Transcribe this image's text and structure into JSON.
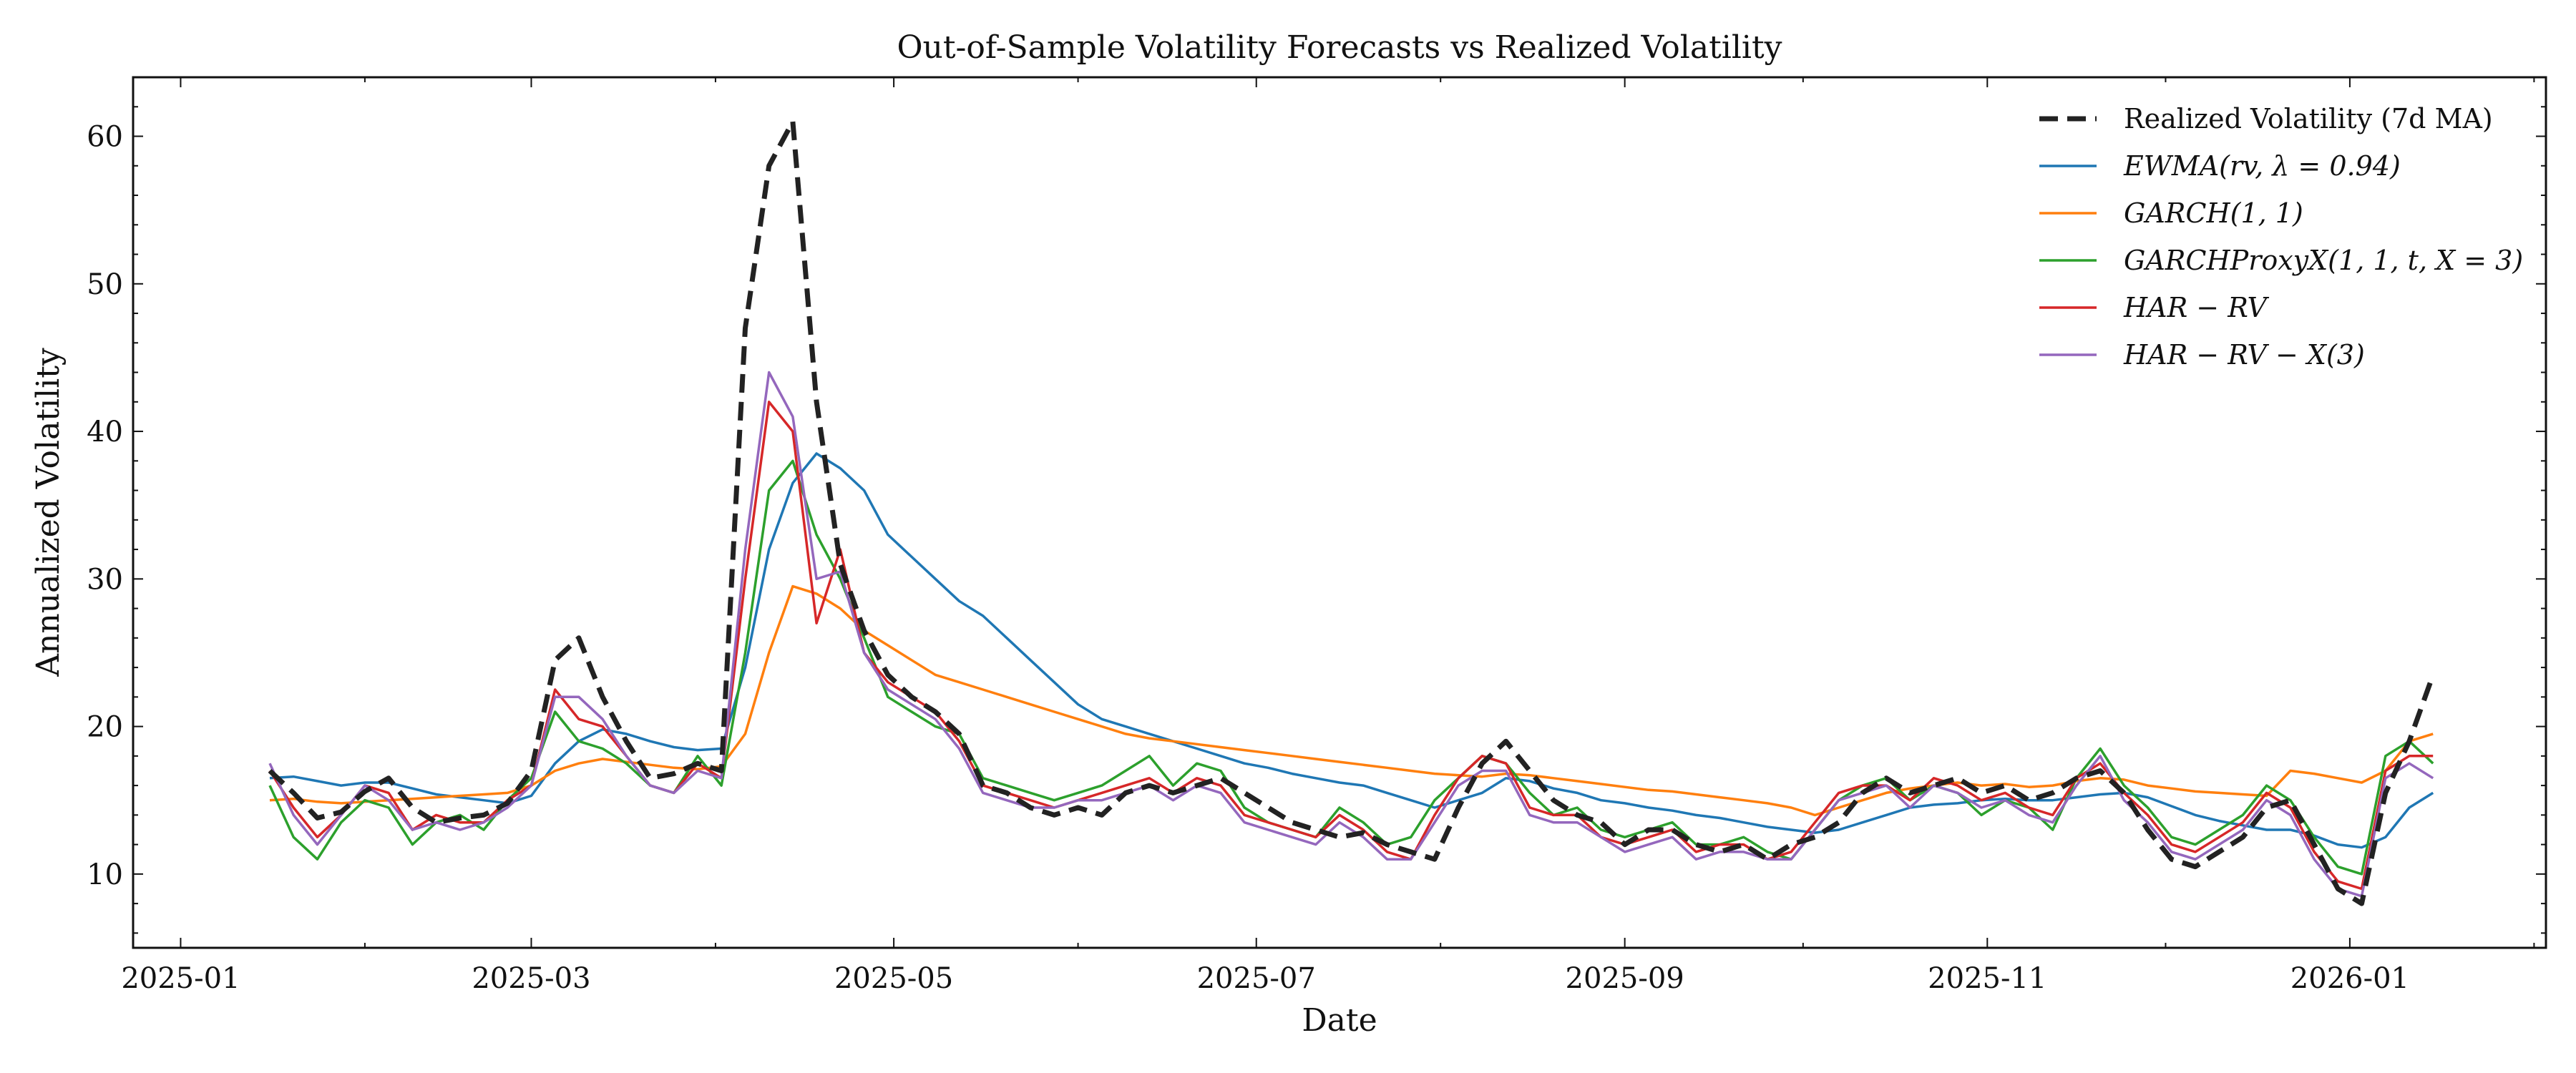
{
  "chart_data": {
    "type": "line",
    "title": "Out-of-Sample Volatility Forecasts vs Realized Volatility",
    "xlabel": "Date",
    "ylabel": "Annualized Volatility",
    "xlim": [
      "2024-12-24",
      "2026-02-03"
    ],
    "ylim": [
      5,
      64
    ],
    "x_ticks": [
      "2025-01",
      "2025-03",
      "2025-05",
      "2025-07",
      "2025-09",
      "2025-11",
      "2026-01"
    ],
    "y_ticks": [
      10,
      20,
      30,
      40,
      50,
      60
    ],
    "grid": false,
    "legend_position": "upper-right",
    "dates": [
      "2025-01-16",
      "2025-01-20",
      "2025-01-24",
      "2025-01-28",
      "2025-02-01",
      "2025-02-05",
      "2025-02-09",
      "2025-02-13",
      "2025-02-17",
      "2025-02-21",
      "2025-02-25",
      "2025-03-01",
      "2025-03-05",
      "2025-03-09",
      "2025-03-13",
      "2025-03-17",
      "2025-03-21",
      "2025-03-25",
      "2025-03-29",
      "2025-04-02",
      "2025-04-06",
      "2025-04-10",
      "2025-04-14",
      "2025-04-18",
      "2025-04-22",
      "2025-04-26",
      "2025-04-30",
      "2025-05-04",
      "2025-05-08",
      "2025-05-12",
      "2025-05-16",
      "2025-05-20",
      "2025-05-24",
      "2025-05-28",
      "2025-06-01",
      "2025-06-05",
      "2025-06-09",
      "2025-06-13",
      "2025-06-17",
      "2025-06-21",
      "2025-06-25",
      "2025-06-29",
      "2025-07-03",
      "2025-07-07",
      "2025-07-11",
      "2025-07-15",
      "2025-07-19",
      "2025-07-23",
      "2025-07-27",
      "2025-07-31",
      "2025-08-04",
      "2025-08-08",
      "2025-08-12",
      "2025-08-16",
      "2025-08-20",
      "2025-08-24",
      "2025-08-28",
      "2025-09-01",
      "2025-09-05",
      "2025-09-09",
      "2025-09-13",
      "2025-09-17",
      "2025-09-21",
      "2025-09-25",
      "2025-09-29",
      "2025-10-03",
      "2025-10-07",
      "2025-10-11",
      "2025-10-15",
      "2025-10-19",
      "2025-10-23",
      "2025-10-27",
      "2025-10-31",
      "2025-11-04",
      "2025-11-08",
      "2025-11-12",
      "2025-11-16",
      "2025-11-20",
      "2025-11-24",
      "2025-11-28",
      "2025-12-02",
      "2025-12-06",
      "2025-12-10",
      "2025-12-14",
      "2025-12-18",
      "2025-12-22",
      "2025-12-26",
      "2025-12-30",
      "2026-01-03",
      "2026-01-07",
      "2026-01-11",
      "2026-01-15"
    ],
    "series": [
      {
        "name": "Realized Volatility (7d MA)",
        "color": "#222222",
        "dashed": true,
        "values": [
          17.0,
          15.5,
          13.8,
          14.2,
          15.6,
          16.5,
          14.5,
          13.5,
          13.8,
          14.0,
          14.8,
          17.0,
          24.5,
          26.0,
          22.0,
          19.0,
          16.5,
          16.8,
          17.5,
          17.0,
          47.0,
          58.0,
          61.0,
          42.0,
          31.0,
          26.5,
          23.5,
          22.0,
          21.0,
          19.5,
          16.0,
          15.5,
          14.5,
          14.0,
          14.5,
          14.0,
          15.5,
          16.0,
          15.5,
          16.0,
          16.5,
          15.5,
          14.5,
          13.5,
          13.0,
          12.5,
          12.8,
          12.0,
          11.5,
          11.0,
          14.5,
          17.5,
          19.0,
          17.0,
          15.0,
          14.0,
          13.5,
          12.0,
          13.0,
          13.0,
          12.0,
          11.5,
          12.0,
          11.0,
          12.0,
          12.5,
          13.5,
          15.5,
          16.5,
          15.5,
          16.0,
          16.5,
          15.5,
          16.0,
          15.0,
          15.5,
          16.5,
          17.0,
          15.5,
          13.0,
          11.0,
          10.5,
          11.5,
          12.5,
          14.5,
          15.0,
          12.0,
          9.0,
          8.0,
          15.5,
          19.0,
          23.5
        ]
      },
      {
        "name": "EWMA(rv, λ = 0.94)",
        "color": "#1f77b4",
        "dashed": false,
        "values": [
          16.5,
          16.6,
          16.3,
          16.0,
          16.2,
          16.2,
          15.8,
          15.4,
          15.2,
          15.0,
          14.8,
          15.3,
          17.5,
          19.0,
          19.8,
          19.5,
          19.0,
          18.6,
          18.4,
          18.5,
          24.0,
          32.0,
          36.5,
          38.5,
          37.5,
          36.0,
          33.0,
          31.5,
          30.0,
          28.5,
          27.5,
          26.0,
          24.5,
          23.0,
          21.5,
          20.5,
          20.0,
          19.5,
          19.0,
          18.5,
          18.0,
          17.5,
          17.2,
          16.8,
          16.5,
          16.2,
          16.0,
          15.5,
          15.0,
          14.5,
          15.0,
          15.5,
          16.5,
          16.3,
          15.8,
          15.5,
          15.0,
          14.8,
          14.5,
          14.3,
          14.0,
          13.8,
          13.5,
          13.2,
          13.0,
          12.8,
          13.0,
          13.5,
          14.0,
          14.5,
          14.7,
          14.8,
          15.0,
          15.1,
          15.0,
          15.0,
          15.2,
          15.4,
          15.5,
          15.2,
          14.6,
          14.0,
          13.6,
          13.3,
          13.0,
          13.0,
          12.6,
          12.0,
          11.8,
          12.5,
          14.5,
          15.5
        ]
      },
      {
        "name": "GARCH(1, 1)",
        "color": "#ff7f0e",
        "dashed": false,
        "values": [
          15.0,
          15.1,
          14.9,
          14.8,
          14.9,
          15.0,
          15.1,
          15.2,
          15.3,
          15.4,
          15.5,
          16.0,
          17.0,
          17.5,
          17.8,
          17.6,
          17.4,
          17.2,
          17.1,
          17.3,
          19.5,
          25.0,
          29.5,
          29.0,
          28.0,
          26.5,
          25.5,
          24.5,
          23.5,
          23.0,
          22.5,
          22.0,
          21.5,
          21.0,
          20.5,
          20.0,
          19.5,
          19.2,
          19.0,
          18.8,
          18.6,
          18.4,
          18.2,
          18.0,
          17.8,
          17.6,
          17.4,
          17.2,
          17.0,
          16.8,
          16.7,
          16.6,
          16.8,
          16.7,
          16.5,
          16.3,
          16.1,
          15.9,
          15.7,
          15.6,
          15.4,
          15.2,
          15.0,
          14.8,
          14.5,
          14.0,
          14.5,
          15.0,
          15.5,
          15.8,
          16.0,
          16.2,
          16.0,
          16.1,
          15.9,
          16.0,
          16.3,
          16.5,
          16.4,
          16.0,
          15.8,
          15.6,
          15.5,
          15.4,
          15.3,
          17.0,
          16.8,
          16.5,
          16.2,
          17.0,
          19.0,
          19.5
        ]
      },
      {
        "name": "GARCHProxyX(1, 1, t, X = 3)",
        "color": "#2ca02c",
        "dashed": false,
        "values": [
          16.0,
          12.5,
          11.0,
          13.5,
          15.0,
          14.5,
          12.0,
          13.5,
          14.0,
          13.0,
          15.0,
          16.5,
          21.0,
          19.0,
          18.5,
          17.5,
          16.0,
          15.5,
          18.0,
          16.0,
          25.0,
          36.0,
          38.0,
          33.0,
          30.0,
          26.0,
          22.0,
          21.0,
          20.0,
          19.5,
          16.5,
          16.0,
          15.5,
          15.0,
          15.5,
          16.0,
          17.0,
          18.0,
          16.0,
          17.5,
          17.0,
          14.5,
          13.5,
          13.0,
          12.5,
          14.5,
          13.5,
          12.0,
          12.5,
          15.0,
          16.5,
          18.0,
          17.5,
          15.5,
          14.0,
          14.5,
          13.0,
          12.5,
          13.0,
          13.5,
          12.0,
          12.0,
          12.5,
          11.5,
          11.0,
          13.0,
          15.0,
          16.0,
          16.5,
          15.0,
          16.0,
          15.5,
          14.0,
          15.0,
          14.5,
          13.0,
          16.5,
          18.5,
          16.0,
          14.5,
          12.5,
          12.0,
          13.0,
          14.0,
          16.0,
          15.0,
          12.5,
          10.5,
          10.0,
          18.0,
          19.0,
          17.5
        ]
      },
      {
        "name": "HAR − RV",
        "color": "#d62728",
        "dashed": false,
        "values": [
          17.0,
          14.5,
          12.5,
          14.0,
          16.0,
          15.5,
          13.0,
          14.0,
          13.5,
          13.5,
          15.0,
          16.0,
          22.5,
          20.5,
          20.0,
          18.0,
          16.0,
          15.5,
          17.5,
          16.5,
          30.0,
          42.0,
          40.0,
          27.0,
          32.0,
          25.0,
          23.0,
          22.0,
          21.0,
          19.0,
          16.0,
          15.5,
          15.0,
          14.5,
          15.0,
          15.5,
          16.0,
          16.5,
          15.5,
          16.5,
          16.0,
          14.0,
          13.5,
          13.0,
          12.5,
          14.0,
          13.0,
          11.5,
          11.0,
          14.0,
          16.5,
          18.0,
          17.5,
          14.5,
          14.0,
          14.0,
          12.5,
          12.0,
          12.5,
          13.0,
          11.5,
          12.0,
          12.0,
          11.0,
          11.5,
          13.5,
          15.5,
          16.0,
          16.0,
          15.0,
          16.5,
          16.0,
          15.0,
          15.5,
          14.5,
          14.0,
          16.5,
          17.5,
          15.5,
          14.0,
          12.0,
          11.5,
          12.5,
          13.5,
          15.5,
          14.5,
          11.5,
          9.5,
          9.0,
          17.0,
          18.0,
          18.0
        ]
      },
      {
        "name": "HAR − RV − X(3)",
        "color": "#9467bd",
        "dashed": false,
        "values": [
          17.5,
          14.0,
          12.0,
          14.0,
          16.0,
          15.0,
          13.0,
          13.5,
          13.0,
          13.5,
          14.5,
          16.0,
          22.0,
          22.0,
          20.5,
          18.0,
          16.0,
          15.5,
          17.0,
          16.5,
          32.0,
          44.0,
          41.0,
          30.0,
          30.5,
          25.0,
          22.5,
          21.5,
          20.5,
          18.5,
          15.5,
          15.0,
          14.5,
          14.5,
          15.0,
          15.0,
          15.5,
          16.0,
          15.0,
          16.0,
          15.5,
          13.5,
          13.0,
          12.5,
          12.0,
          13.5,
          12.5,
          11.0,
          11.0,
          13.5,
          16.0,
          17.0,
          17.0,
          14.0,
          13.5,
          13.5,
          12.5,
          11.5,
          12.0,
          12.5,
          11.0,
          11.5,
          11.5,
          11.0,
          11.0,
          13.0,
          15.0,
          15.5,
          16.0,
          14.5,
          16.0,
          15.5,
          14.5,
          15.0,
          14.0,
          13.5,
          16.0,
          18.0,
          15.0,
          13.5,
          11.5,
          11.0,
          12.0,
          13.0,
          15.0,
          14.0,
          11.0,
          9.0,
          8.5,
          16.5,
          17.5,
          16.5
        ]
      }
    ]
  }
}
